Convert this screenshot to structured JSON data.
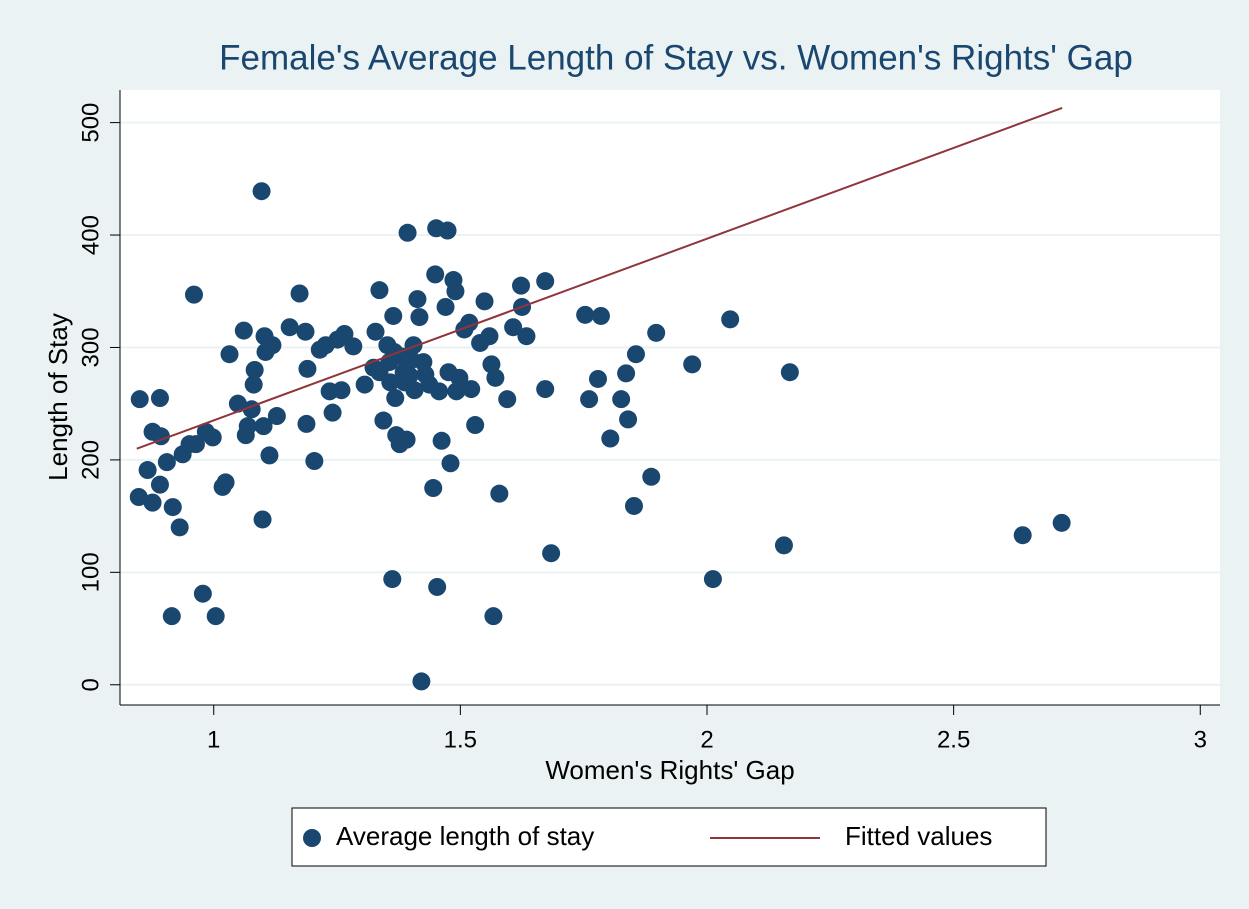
{
  "chart_data": {
    "type": "scatter",
    "title": "Female's Average Length of Stay vs. Women's Rights' Gap",
    "x_label": "Women's Rights' Gap",
    "y_label": "Length of Stay",
    "xlim": [
      0.81,
      3.04
    ],
    "ylim": [
      -18,
      529
    ],
    "xticks": [
      1,
      1.5,
      2,
      2.5,
      3
    ],
    "yticks": [
      0,
      100,
      200,
      300,
      400,
      500
    ],
    "grid": true,
    "legend": "bottom",
    "series": [
      {
        "name": "Average length of stay",
        "color": "#1a476f",
        "x": [
          0.848,
          0.85,
          0.866,
          0.876,
          0.876,
          0.891,
          0.891,
          0.893,
          0.905,
          0.915,
          0.917,
          0.931,
          0.937,
          0.951,
          0.96,
          0.964,
          0.978,
          0.984,
          0.998,
          1.004,
          1.018,
          1.024,
          1.032,
          1.049,
          1.061,
          1.065,
          1.069,
          1.077,
          1.081,
          1.083,
          1.097,
          1.099,
          1.101,
          1.103,
          1.105,
          1.113,
          1.119,
          1.128,
          1.154,
          1.174,
          1.186,
          1.188,
          1.19,
          1.204,
          1.215,
          1.227,
          1.235,
          1.241,
          1.251,
          1.259,
          1.265,
          1.283,
          1.306,
          1.324,
          1.328,
          1.336,
          1.344,
          1.352,
          1.358,
          1.362,
          1.364,
          1.368,
          1.37,
          1.377,
          1.381,
          1.385,
          1.391,
          1.393,
          1.397,
          1.401,
          1.405,
          1.413,
          1.417,
          1.421,
          1.425,
          1.429,
          1.437,
          1.445,
          1.449,
          1.451,
          1.453,
          1.457,
          1.462,
          1.47,
          1.474,
          1.476,
          1.48,
          1.486,
          1.49,
          1.492,
          1.498,
          1.508,
          1.518,
          1.522,
          1.53,
          1.54,
          1.549,
          1.559,
          1.563,
          1.567,
          1.571,
          1.579,
          1.595,
          1.607,
          1.623,
          1.625,
          1.634,
          1.672,
          1.672,
          1.684,
          1.753,
          1.761,
          1.779,
          1.785,
          1.804,
          1.826,
          1.836,
          1.84,
          1.852,
          1.856,
          1.887,
          1.897,
          1.97,
          2.012,
          2.047,
          2.156,
          2.168,
          2.64,
          2.719,
          1.336,
          1.356,
          1.387,
          1.407,
          1.366
        ],
        "values": [
          167,
          254,
          191,
          225,
          162,
          255,
          178,
          221,
          198,
          61,
          158,
          140,
          205,
          214,
          347,
          214,
          81,
          225,
          220,
          61,
          176,
          180,
          294,
          250,
          315,
          222,
          230,
          245,
          267,
          280,
          439,
          147,
          230,
          310,
          296,
          204,
          302,
          239,
          318,
          348,
          314,
          232,
          281,
          199,
          298,
          302,
          261,
          242,
          307,
          262,
          312,
          301,
          267,
          282,
          314,
          351,
          235,
          302,
          269,
          94,
          328,
          255,
          222,
          214,
          292,
          278,
          218,
          402,
          275,
          289,
          302,
          343,
          327,
          3,
          287,
          276,
          267,
          175,
          365,
          406,
          87,
          261,
          217,
          336,
          404,
          278,
          197,
          360,
          350,
          261,
          273,
          316,
          322,
          263,
          231,
          304,
          341,
          310,
          285,
          61,
          273,
          170,
          254,
          318,
          355,
          336,
          310,
          359,
          263,
          117,
          329,
          254,
          272,
          328,
          219,
          254,
          277,
          236,
          159,
          294,
          185,
          313,
          285,
          94,
          325,
          124,
          278,
          133,
          144,
          278,
          287,
          269,
          262,
          296
        ]
      },
      {
        "name": "Fitted values",
        "color": "#90353b",
        "type": "line",
        "x": [
          0.844,
          2.72
        ],
        "values": [
          210,
          513
        ]
      }
    ]
  }
}
